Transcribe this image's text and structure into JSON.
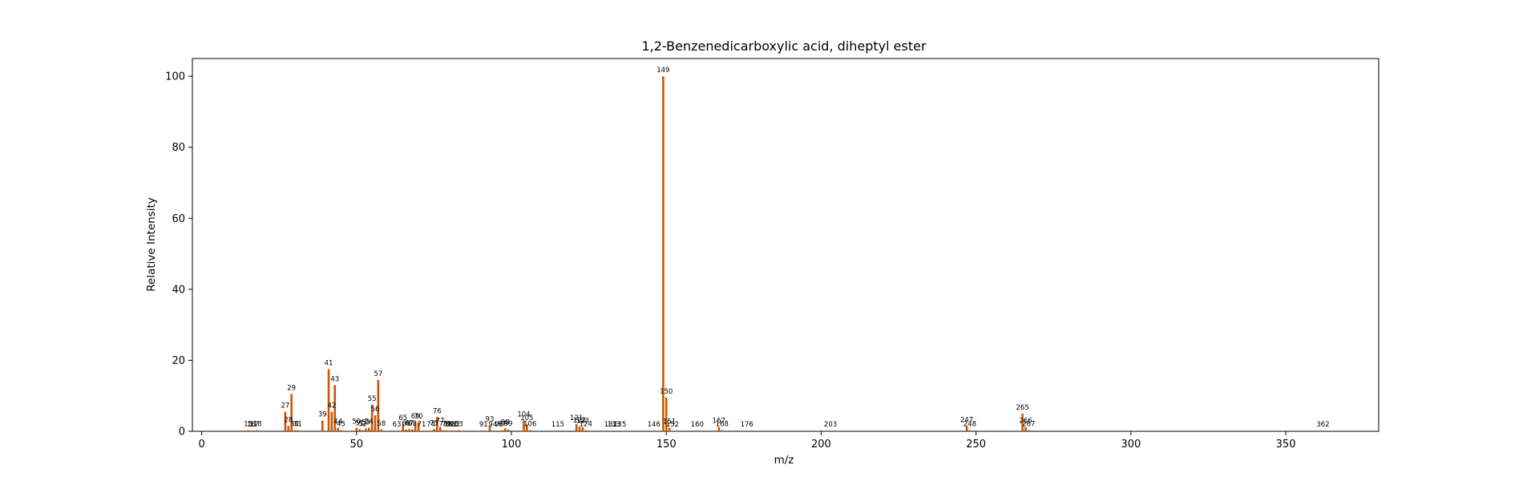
{
  "chart_data": {
    "type": "bar",
    "title": "1,2-Benzenedicarboxylic acid, diheptyl ester",
    "xlabel": "m/z",
    "ylabel": "Relative Intensity",
    "xlim": [
      -3,
      380
    ],
    "ylim": [
      0,
      105
    ],
    "x_ticks": [
      0,
      50,
      100,
      150,
      200,
      250,
      300,
      350
    ],
    "y_ticks": [
      0,
      20,
      40,
      60,
      80,
      100
    ],
    "bar_color": "#cc5500",
    "grid": false,
    "legend": "none",
    "peaks": [
      {
        "mz": 15,
        "intensity": 0.3
      },
      {
        "mz": 16,
        "intensity": 0.2
      },
      {
        "mz": 17,
        "intensity": 0.2
      },
      {
        "mz": 18,
        "intensity": 0.3
      },
      {
        "mz": 27,
        "intensity": 5.5
      },
      {
        "mz": 28,
        "intensity": 1.5
      },
      {
        "mz": 29,
        "intensity": 10.5
      },
      {
        "mz": 30,
        "intensity": 0.3
      },
      {
        "mz": 31,
        "intensity": 0.3
      },
      {
        "mz": 39,
        "intensity": 3.0
      },
      {
        "mz": 41,
        "intensity": 17.5
      },
      {
        "mz": 42,
        "intensity": 5.5
      },
      {
        "mz": 43,
        "intensity": 13.0
      },
      {
        "mz": 44,
        "intensity": 1.0
      },
      {
        "mz": 45,
        "intensity": 0.3
      },
      {
        "mz": 50,
        "intensity": 1.0
      },
      {
        "mz": 51,
        "intensity": 0.6
      },
      {
        "mz": 52,
        "intensity": 0.3
      },
      {
        "mz": 53,
        "intensity": 0.8
      },
      {
        "mz": 54,
        "intensity": 1.0
      },
      {
        "mz": 55,
        "intensity": 7.5
      },
      {
        "mz": 56,
        "intensity": 4.5
      },
      {
        "mz": 57,
        "intensity": 14.5
      },
      {
        "mz": 58,
        "intensity": 0.5
      },
      {
        "mz": 63,
        "intensity": 0.2
      },
      {
        "mz": 65,
        "intensity": 2.0
      },
      {
        "mz": 66,
        "intensity": 0.5
      },
      {
        "mz": 67,
        "intensity": 0.6
      },
      {
        "mz": 68,
        "intensity": 0.5
      },
      {
        "mz": 69,
        "intensity": 2.5
      },
      {
        "mz": 70,
        "intensity": 2.5
      },
      {
        "mz": 71,
        "intensity": 0.2
      },
      {
        "mz": 74,
        "intensity": 0.2
      },
      {
        "mz": 75,
        "intensity": 0.6
      },
      {
        "mz": 76,
        "intensity": 4.0
      },
      {
        "mz": 77,
        "intensity": 1.2
      },
      {
        "mz": 78,
        "intensity": 0.3
      },
      {
        "mz": 79,
        "intensity": 0.3
      },
      {
        "mz": 80,
        "intensity": 0.2
      },
      {
        "mz": 81,
        "intensity": 0.2
      },
      {
        "mz": 82,
        "intensity": 0.2
      },
      {
        "mz": 83,
        "intensity": 0.3
      },
      {
        "mz": 91,
        "intensity": 0.2
      },
      {
        "mz": 93,
        "intensity": 1.7
      },
      {
        "mz": 94,
        "intensity": 0.2
      },
      {
        "mz": 96,
        "intensity": 0.2
      },
      {
        "mz": 97,
        "intensity": 0.3
      },
      {
        "mz": 98,
        "intensity": 0.8
      },
      {
        "mz": 99,
        "intensity": 0.5
      },
      {
        "mz": 104,
        "intensity": 3.0
      },
      {
        "mz": 105,
        "intensity": 2.0
      },
      {
        "mz": 106,
        "intensity": 0.3
      },
      {
        "mz": 115,
        "intensity": 0.2
      },
      {
        "mz": 121,
        "intensity": 2.0
      },
      {
        "mz": 122,
        "intensity": 1.3
      },
      {
        "mz": 123,
        "intensity": 1.2
      },
      {
        "mz": 124,
        "intensity": 0.3
      },
      {
        "mz": 132,
        "intensity": 0.2
      },
      {
        "mz": 133,
        "intensity": 0.2
      },
      {
        "mz": 135,
        "intensity": 0.2
      },
      {
        "mz": 146,
        "intensity": 0.2
      },
      {
        "mz": 149,
        "intensity": 100.0
      },
      {
        "mz": 150,
        "intensity": 9.5
      },
      {
        "mz": 151,
        "intensity": 1.0
      },
      {
        "mz": 152,
        "intensity": 0.2
      },
      {
        "mz": 160,
        "intensity": 0.2
      },
      {
        "mz": 167,
        "intensity": 1.2
      },
      {
        "mz": 168,
        "intensity": 0.3
      },
      {
        "mz": 176,
        "intensity": 0.2
      },
      {
        "mz": 203,
        "intensity": 0.2
      },
      {
        "mz": 247,
        "intensity": 1.5
      },
      {
        "mz": 248,
        "intensity": 0.3
      },
      {
        "mz": 265,
        "intensity": 5.0
      },
      {
        "mz": 266,
        "intensity": 1.2
      },
      {
        "mz": 267,
        "intensity": 0.3
      },
      {
        "mz": 362,
        "intensity": 0.2
      }
    ]
  }
}
